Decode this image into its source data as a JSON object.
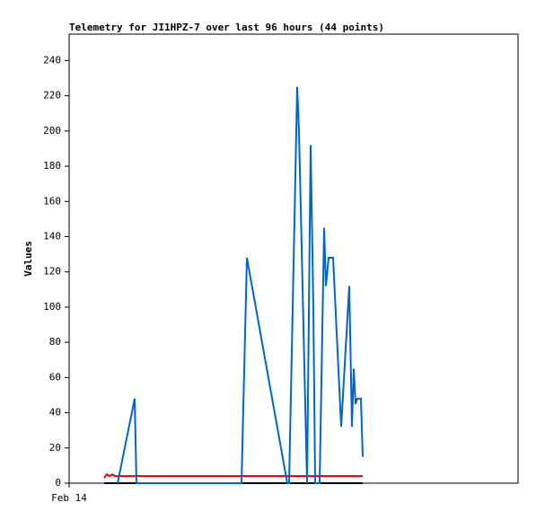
{
  "chart_data": {
    "type": "line",
    "title": "Telemetry for JI1HPZ-7 over last 96 hours (44 points)",
    "y_label": "Values",
    "xlim": [
      0,
      100
    ],
    "xticks": [
      {
        "value": 0,
        "label": "Feb 14"
      }
    ],
    "ylim": [
      0,
      255
    ],
    "yticks": [
      0,
      20,
      40,
      60,
      80,
      100,
      120,
      140,
      160,
      180,
      200,
      220,
      240
    ],
    "series": [
      {
        "color": "#000000",
        "x": [
          7.8,
          65.4
        ],
        "values": [
          0,
          0
        ]
      },
      {
        "color": "#dd0000",
        "x": [
          7.8,
          8.4,
          9,
          9.6,
          10.2,
          65.4
        ],
        "values": [
          3,
          5,
          4,
          5,
          4,
          4
        ]
      },
      {
        "color": "#0066cc",
        "x": [
          10.8,
          14.6,
          15,
          38.4,
          39.6,
          48.6,
          49,
          50.8,
          51.2,
          53,
          53.8,
          54.4,
          54.8,
          55.8,
          56.8,
          57.2,
          57.8,
          58.8,
          60.6,
          62.4,
          63,
          63.4,
          63.8,
          64.2,
          65,
          65.4
        ],
        "values": [
          0,
          48,
          0,
          0,
          128,
          0,
          0,
          225,
          200,
          0,
          192,
          100,
          0,
          0,
          145,
          112,
          128,
          128,
          32,
          112,
          32,
          65,
          45,
          48,
          48,
          15
        ]
      }
    ]
  }
}
